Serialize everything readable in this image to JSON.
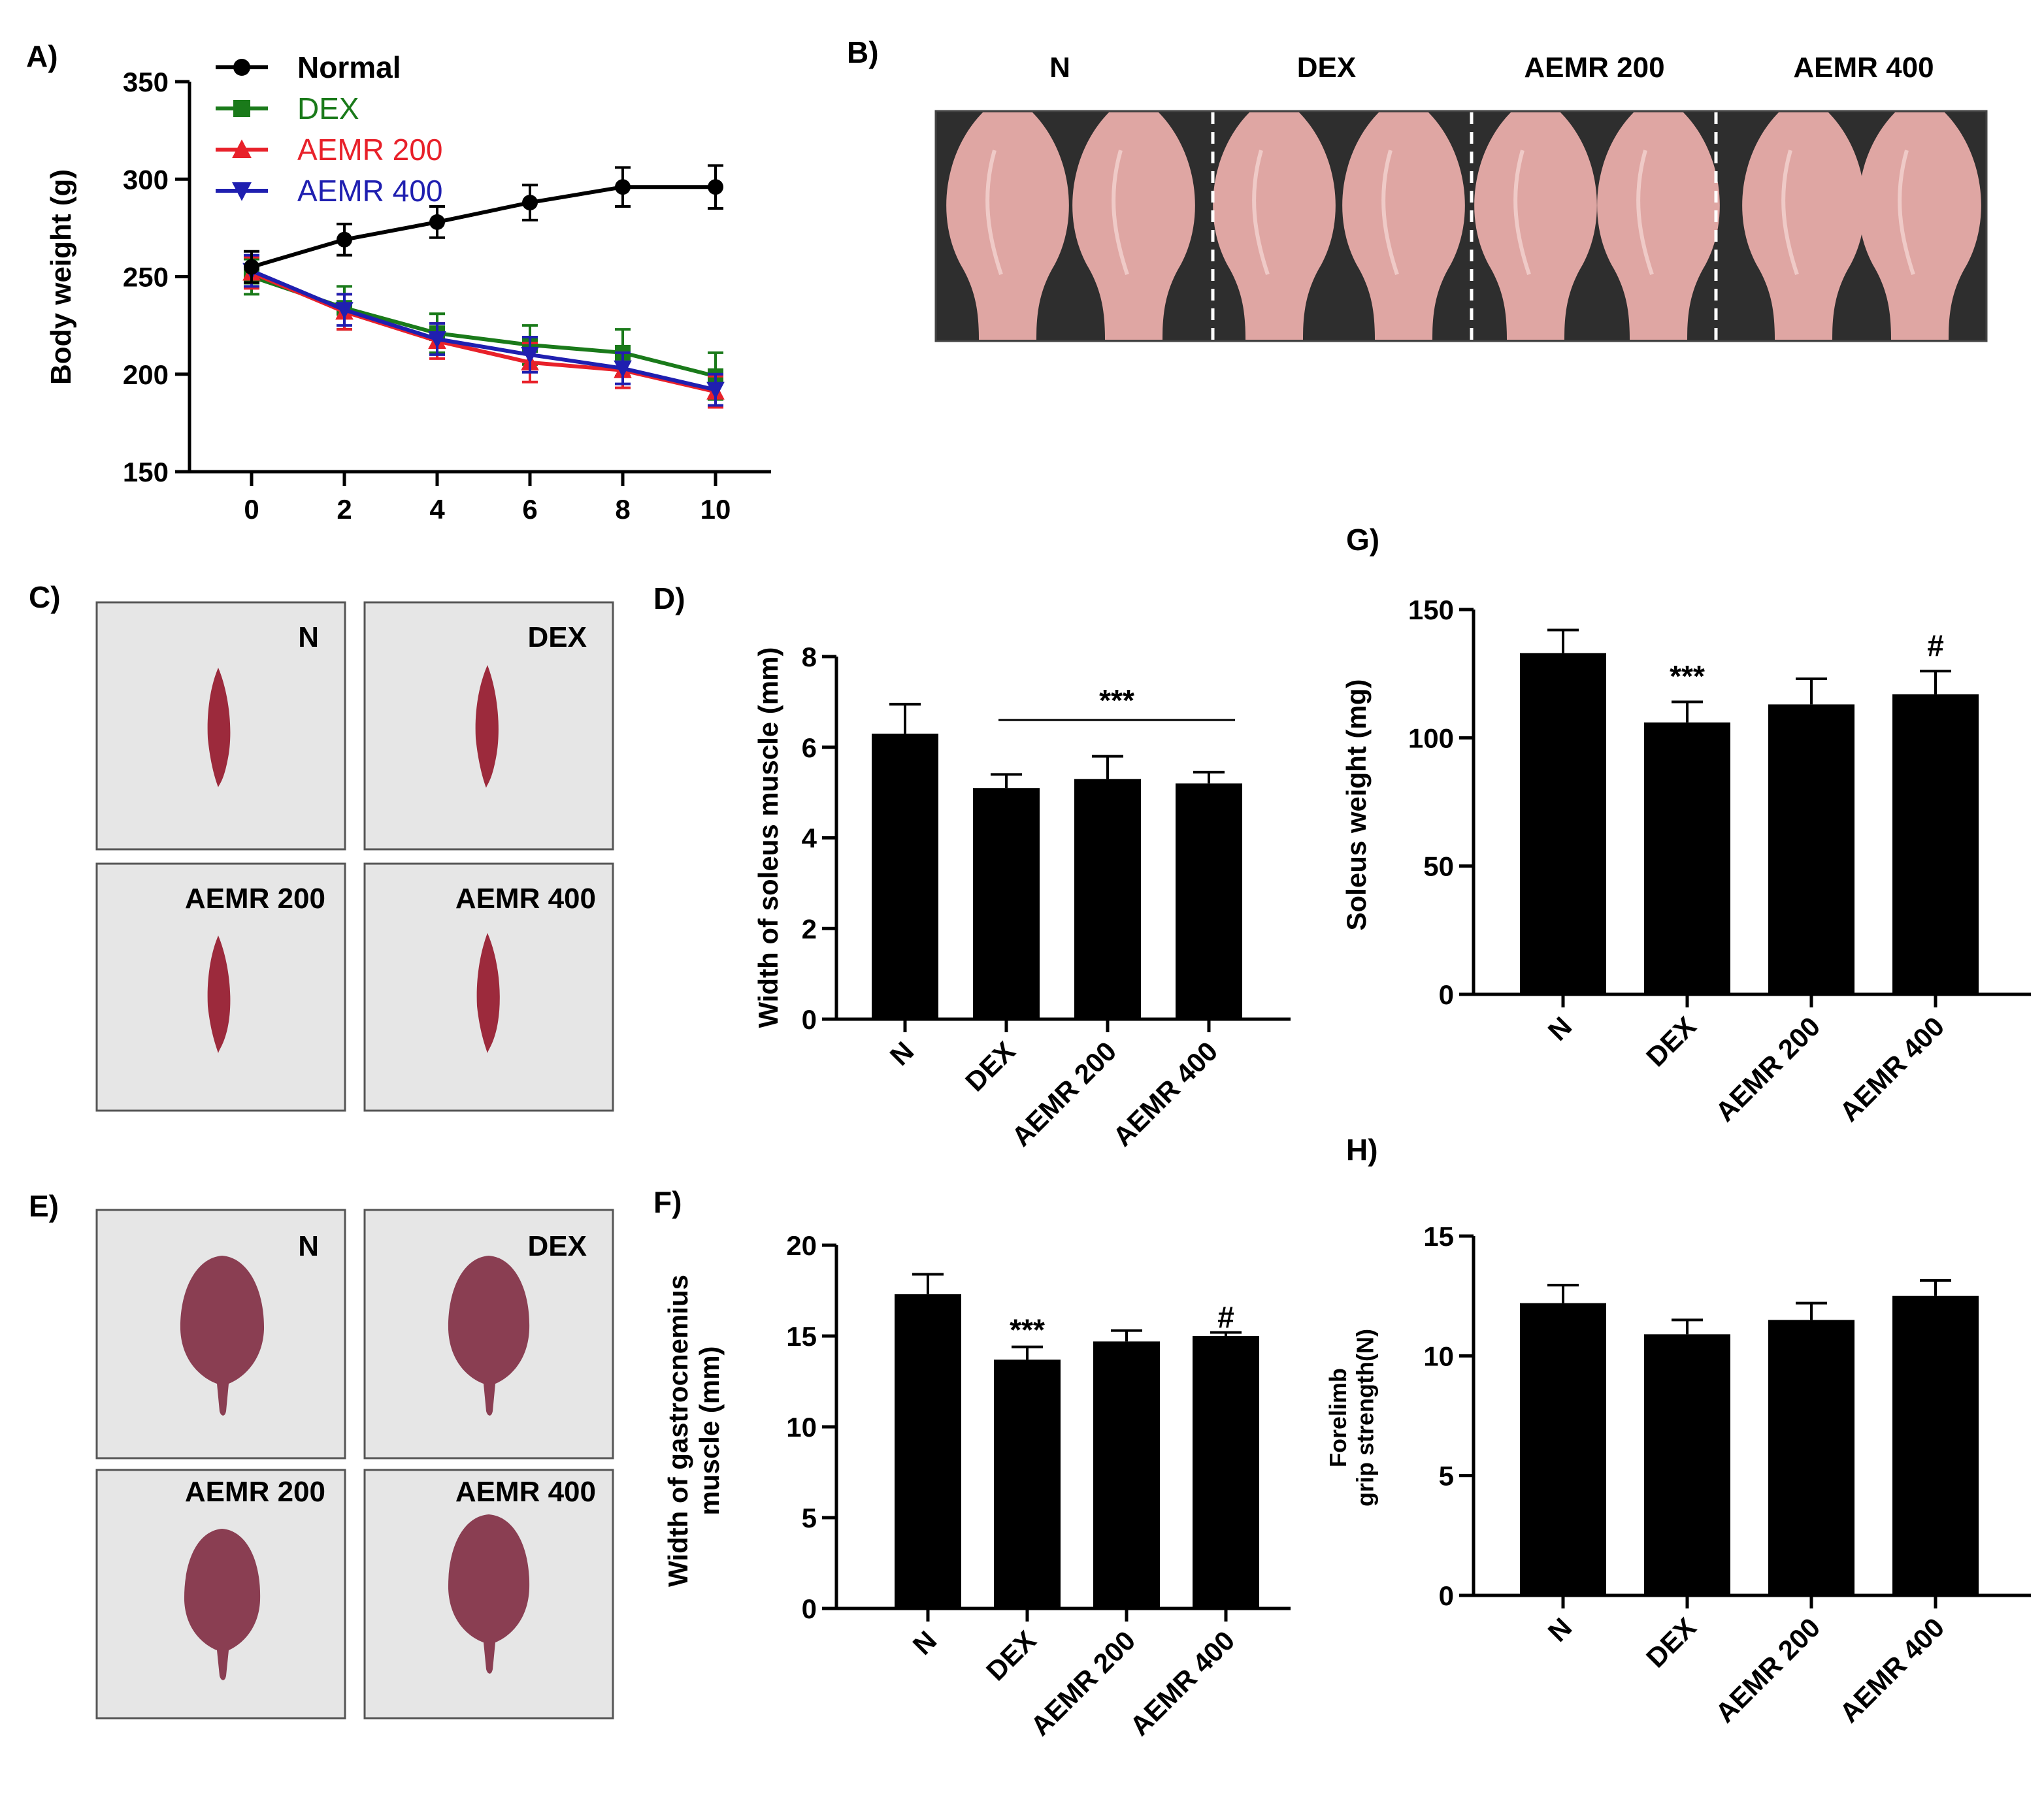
{
  "panels": {
    "A": {
      "letter": "A)"
    },
    "B": {
      "letter": "B)",
      "groups": [
        "N",
        "DEX",
        "AEMR 200",
        "AEMR 400"
      ]
    },
    "C": {
      "letter": "C)",
      "labels": [
        "N",
        "DEX",
        "AEMR 200",
        "AEMR 400"
      ]
    },
    "E": {
      "letter": "E)",
      "labels": [
        "N",
        "DEX",
        "AEMR 200",
        "AEMR 400"
      ]
    }
  },
  "colors": {
    "normal": "#000000",
    "dex": "#1a7a1a",
    "aemr200": "#e8212a",
    "aemr400": "#1f1fb0",
    "bar": "#000000",
    "photo_bg_b": "#2e2e2e",
    "muscle_pink": "#dfa6a3",
    "photo_bg_ce": "#e6e6e6",
    "soleus_red": "#9c2a3c",
    "gastro_purple": "#8a3e52"
  },
  "chart_data": [
    {
      "id": "A",
      "type": "line",
      "xlabel": "",
      "ylabel": "Body weight (g)",
      "x": [
        0,
        2,
        4,
        6,
        8,
        10
      ],
      "xticks": [
        "0",
        "2",
        "4",
        "6",
        "8",
        "10"
      ],
      "yticks": [
        "150",
        "200",
        "250",
        "300",
        "350"
      ],
      "ylim": [
        150,
        350
      ],
      "series": [
        {
          "name": "Normal",
          "key": "normal",
          "marker": "circle",
          "values": [
            255,
            269,
            278,
            288,
            296,
            296
          ],
          "errors": [
            8,
            8,
            8,
            9,
            10,
            11
          ]
        },
        {
          "name": "DEX",
          "key": "dex",
          "marker": "square",
          "values": [
            250,
            234,
            221,
            215,
            211,
            199
          ],
          "errors": [
            9,
            11,
            10,
            10,
            12,
            12
          ]
        },
        {
          "name": "AEMR 200",
          "key": "aemr200",
          "marker": "triangle-up",
          "values": [
            252,
            232,
            217,
            206,
            202,
            191
          ],
          "errors": [
            8,
            9,
            9,
            10,
            9,
            8
          ]
        },
        {
          "name": "AEMR 400",
          "key": "aemr400",
          "marker": "triangle-down",
          "values": [
            253,
            233,
            218,
            210,
            203,
            192
          ],
          "errors": [
            8,
            8,
            8,
            9,
            8,
            8
          ]
        }
      ]
    },
    {
      "id": "D",
      "type": "bar",
      "ylabel": "Width of soleus muscle (mm)",
      "categories": [
        "N",
        "DEX",
        "AEMR 200",
        "AEMR 400"
      ],
      "values": [
        6.3,
        5.1,
        5.3,
        5.2
      ],
      "errors": [
        0.65,
        0.3,
        0.5,
        0.25
      ],
      "ylim": [
        0,
        8
      ],
      "yticks": [
        "0",
        "2",
        "4",
        "6",
        "8"
      ],
      "annotations": [
        {
          "text": "***",
          "span": [
            1,
            3
          ],
          "y": 6.6
        }
      ]
    },
    {
      "id": "G",
      "type": "bar",
      "ylabel": "Soleus weight (mg)",
      "categories": [
        "N",
        "DEX",
        "AEMR 200",
        "AEMR 400"
      ],
      "values": [
        133,
        106,
        113,
        117
      ],
      "errors": [
        9,
        8,
        10,
        9
      ],
      "ylim": [
        0,
        150
      ],
      "yticks": [
        "0",
        "50",
        "100",
        "150"
      ],
      "annotations": [
        {
          "text": "***",
          "bar": 1,
          "y": 123
        },
        {
          "text": "#",
          "bar": 3,
          "y": 135
        }
      ]
    },
    {
      "id": "F",
      "type": "bar",
      "ylabel": "Width of gastrocnemius\nmuscle (mm)",
      "categories": [
        "N",
        "DEX",
        "AEMR 200",
        "AEMR 400"
      ],
      "values": [
        17.3,
        13.7,
        14.7,
        15.0
      ],
      "errors": [
        1.1,
        0.7,
        0.6,
        0.2
      ],
      "ylim": [
        0,
        20
      ],
      "yticks": [
        "0",
        "5",
        "10",
        "15",
        "20"
      ],
      "annotations": [
        {
          "text": "***",
          "bar": 1,
          "y": 15.2
        },
        {
          "text": "#",
          "bar": 3,
          "y": 15.9
        }
      ]
    },
    {
      "id": "H",
      "type": "bar",
      "ylabel": "Forelimb\ngrip strength(N)",
      "categories": [
        "N",
        "DEX",
        "AEMR 200",
        "AEMR 400"
      ],
      "values": [
        12.2,
        10.9,
        11.5,
        12.5
      ],
      "errors": [
        0.75,
        0.6,
        0.7,
        0.65
      ],
      "ylim": [
        0,
        15
      ],
      "yticks": [
        "0",
        "5",
        "10",
        "15"
      ],
      "annotations": []
    }
  ]
}
